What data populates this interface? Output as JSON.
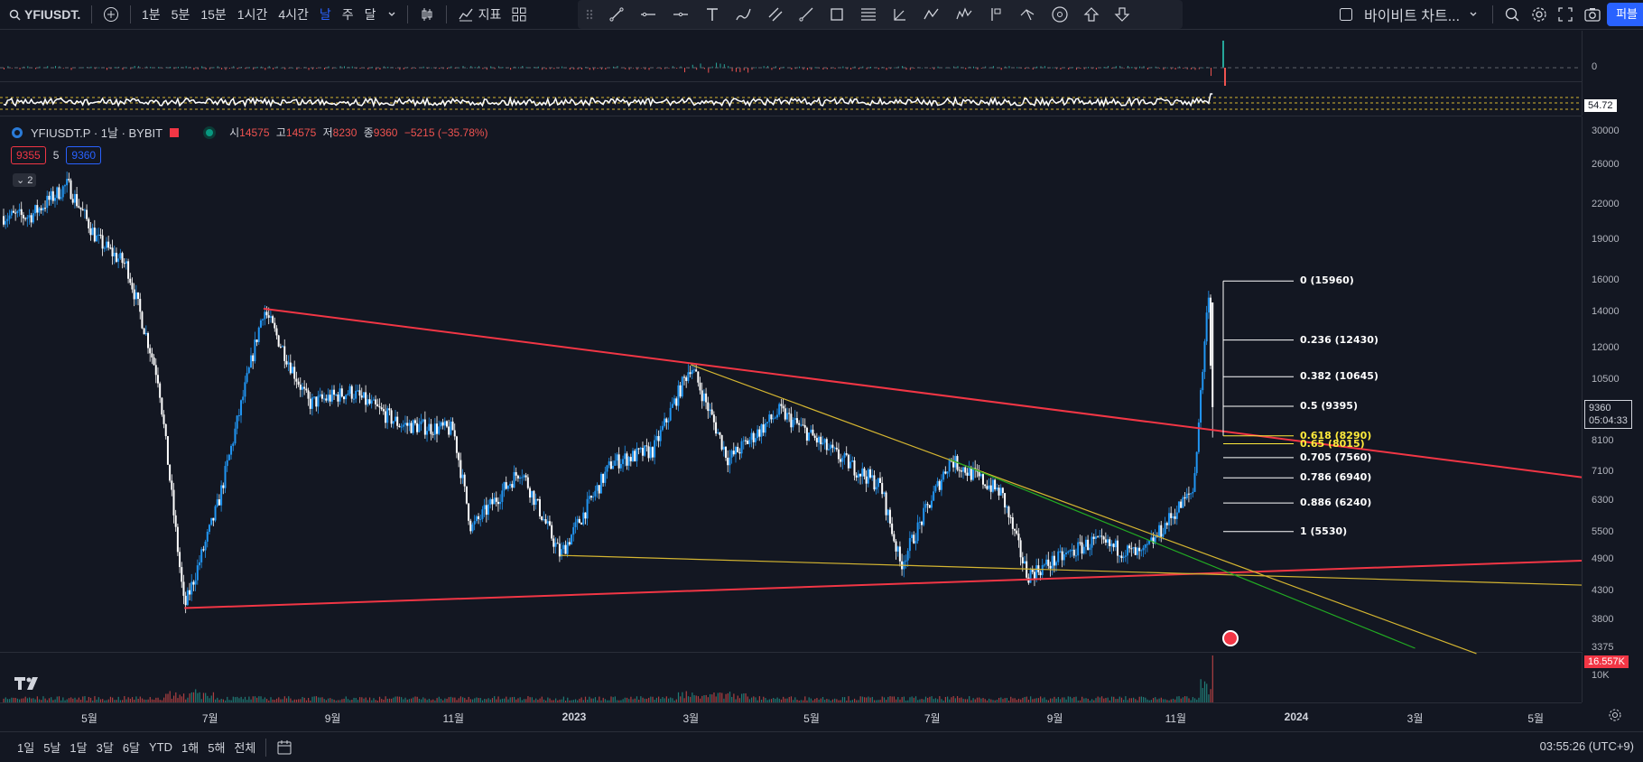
{
  "topbar": {
    "symbol": "YFIUSDT.P",
    "intervals": [
      "1분",
      "5분",
      "15분",
      "1시간",
      "4시간",
      "날",
      "주",
      "달"
    ],
    "active_interval": "날",
    "indicators_label": "지표",
    "layout_name": "바이비트 차트...",
    "publish_label": "퍼블"
  },
  "legend": {
    "title": "YFIUSDT.P · 1날 · BYBIT",
    "o_label": "시",
    "o": "14575",
    "h_label": "고",
    "h": "14575",
    "l_label": "저",
    "l": "8230",
    "c_label": "종",
    "c": "9360",
    "change": "−5215 (−35.78%)",
    "bid": "9355",
    "spread": "5",
    "ask": "9360",
    "collapse_count": "2"
  },
  "price_scale": {
    "labels": [
      "30000",
      "26000",
      "22000",
      "19000",
      "16000",
      "14000",
      "12000",
      "10500",
      "8100",
      "7100",
      "6300",
      "5500",
      "4900",
      "4300",
      "3800",
      "3375"
    ],
    "current_price": "9360",
    "countdown": "05:04:33",
    "osc_zero": "0",
    "rsi_value": "54.72",
    "volume_value": "16.557K",
    "volume_label": "10K"
  },
  "fib_levels": [
    {
      "label": "0 (15960)",
      "price": 15960,
      "highlight": false
    },
    {
      "label": "0.236 (12430)",
      "price": 12430,
      "highlight": false
    },
    {
      "label": "0.382 (10645)",
      "price": 10645,
      "highlight": false
    },
    {
      "label": "0.5 (9395)",
      "price": 9395,
      "highlight": false
    },
    {
      "label": "0.618 (8290)",
      "price": 8290,
      "highlight": true
    },
    {
      "label": "0.65 (8015)",
      "price": 8015,
      "highlight": true
    },
    {
      "label": "0.705 (7560)",
      "price": 7560,
      "highlight": false
    },
    {
      "label": "0.786 (6940)",
      "price": 6940,
      "highlight": false
    },
    {
      "label": "0.886 (6240)",
      "price": 6240,
      "highlight": false
    },
    {
      "label": "1 (5530)",
      "price": 5530,
      "highlight": false
    }
  ],
  "time_axis": [
    "5월",
    "7월",
    "9월",
    "11월",
    "2023",
    "3월",
    "5월",
    "7월",
    "9월",
    "11월",
    "2024",
    "3월",
    "5월"
  ],
  "bottombar": {
    "ranges": [
      "1일",
      "5날",
      "1달",
      "3달",
      "6달",
      "YTD",
      "1해",
      "5해",
      "전체"
    ],
    "clock": "03:55:26 (UTC+9)"
  },
  "chart_data": {
    "type": "candlestick",
    "symbol": "YFIUSDT.P",
    "exchange": "BYBIT",
    "interval": "1날",
    "scale": "log",
    "ylim": [
      3375,
      30000
    ],
    "x_ticks": [
      "5월",
      "7월",
      "9월",
      "11월",
      "2023",
      "3월",
      "5월",
      "7월",
      "9월",
      "11월",
      "2024",
      "3월",
      "5월"
    ],
    "price_path": [
      {
        "t": "2022-04",
        "price": 21000
      },
      {
        "t": "2022-04-20",
        "price": 24000
      },
      {
        "t": "2022-05-05",
        "price": 19000
      },
      {
        "t": "2022-05-20",
        "price": 17000
      },
      {
        "t": "2022-06-05",
        "price": 10500
      },
      {
        "t": "2022-06-18",
        "price": 4000
      },
      {
        "t": "2022-07-05",
        "price": 6200
      },
      {
        "t": "2022-07-28",
        "price": 14200
      },
      {
        "t": "2022-08-20",
        "price": 9500
      },
      {
        "t": "2022-09-10",
        "price": 10000
      },
      {
        "t": "2022-10-05",
        "price": 8700
      },
      {
        "t": "2022-11-01",
        "price": 8500
      },
      {
        "t": "2022-11-10",
        "price": 5600
      },
      {
        "t": "2022-12-05",
        "price": 7200
      },
      {
        "t": "2022-12-25",
        "price": 5000
      },
      {
        "t": "2023-01-20",
        "price": 7400
      },
      {
        "t": "2023-02-10",
        "price": 7800
      },
      {
        "t": "2023-03-01",
        "price": 11200
      },
      {
        "t": "2023-03-20",
        "price": 7500
      },
      {
        "t": "2023-04-15",
        "price": 9200
      },
      {
        "t": "2023-05-10",
        "price": 7800
      },
      {
        "t": "2023-06-05",
        "price": 6700
      },
      {
        "t": "2023-06-15",
        "price": 4800
      },
      {
        "t": "2023-07-10",
        "price": 7500
      },
      {
        "t": "2023-08-05",
        "price": 6500
      },
      {
        "t": "2023-08-18",
        "price": 4600
      },
      {
        "t": "2023-09-20",
        "price": 5300
      },
      {
        "t": "2023-10-15",
        "price": 5000
      },
      {
        "t": "2023-10-30",
        "price": 5900
      },
      {
        "t": "2023-11-10",
        "price": 6600
      },
      {
        "t": "2023-11-18",
        "price": 15960
      },
      {
        "t": "2023-11-19",
        "price": 9360
      }
    ],
    "trendlines": [
      {
        "name": "red-upper",
        "color": "#f23645",
        "from": {
          "t": "2022-07-28",
          "price": 14200
        },
        "to": {
          "t": "2024-06",
          "price": 6900
        }
      },
      {
        "name": "red-lower",
        "color": "#f23645",
        "from": {
          "t": "2022-06-18",
          "price": 4000
        },
        "to": {
          "t": "2024-06",
          "price": 4900
        }
      },
      {
        "name": "yellow-upper",
        "color": "#d4b531",
        "from": {
          "t": "2023-03-01",
          "price": 11200
        },
        "to": {
          "t": "2024-04",
          "price": 3300
        }
      },
      {
        "name": "yellow-lower",
        "color": "#d4b531",
        "from": {
          "t": "2022-12-25",
          "price": 5000
        },
        "to": {
          "t": "2024-06",
          "price": 4400
        }
      },
      {
        "name": "green",
        "color": "#22ab22",
        "from": {
          "t": "2023-07-10",
          "price": 7500
        },
        "to": {
          "t": "2024-03",
          "price": 3375
        }
      }
    ]
  },
  "colors": {
    "background": "#131722",
    "up": "#2196f3",
    "down": "#ffffff",
    "accent": "#2962ff",
    "red": "#f23645",
    "yellow": "#d4b531",
    "green": "#22ab22"
  }
}
